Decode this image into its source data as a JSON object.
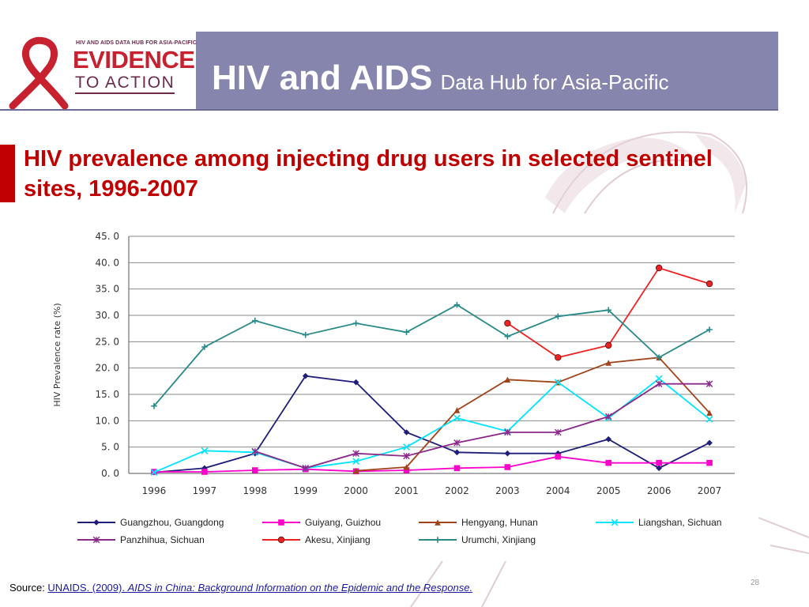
{
  "header": {
    "logo_small_text": "HIV AND AIDS DATA HUB FOR ASIA-PACIFIC",
    "logo_evidence": "EVIDENCE",
    "logo_to_action": "TO ACTION",
    "title_main": "HIV and AIDS",
    "title_sub": "Data Hub for Asia-Pacific"
  },
  "slide_title": "HIV prevalence among injecting drug users in selected sentinel sites, 1996-2007",
  "footer": {
    "source_label": "Source: ",
    "source_link": "UNAIDS. (2009). ",
    "source_title": "AIDS in China: Background Information on the Epidemic and the Response.",
    "page_number": "28"
  },
  "colors": {
    "banner": "#8585ad",
    "title_red": "#c00000"
  },
  "chart_data": {
    "type": "line",
    "title": "",
    "xlabel": "",
    "ylabel": "HIV Prevalence rate (%)",
    "ylim": [
      0,
      45
    ],
    "yticks": [
      "0. 0",
      "5. 0",
      "10. 0",
      "15. 0",
      "20. 0",
      "25. 0",
      "30. 0",
      "35. 0",
      "40. 0",
      "45. 0"
    ],
    "x": [
      "1996",
      "1997",
      "1998",
      "1999",
      "2000",
      "2001",
      "2002",
      "2003",
      "2004",
      "2005",
      "2006",
      "2007"
    ],
    "grid": true,
    "legend_position": "bottom",
    "series": [
      {
        "name": "Guangzhou, Guangdong",
        "color": "#1f1f7a",
        "marker": "diamond",
        "values": [
          0.2,
          1.0,
          3.8,
          18.5,
          17.3,
          7.8,
          4.0,
          3.8,
          3.8,
          6.5,
          1.0,
          5.8
        ]
      },
      {
        "name": "Guiyang,  Guizhou",
        "color": "#ff00cc",
        "marker": "square",
        "values": [
          0.3,
          0.3,
          0.6,
          0.8,
          0.4,
          0.6,
          1.0,
          1.2,
          3.2,
          2.0,
          2.0,
          2.0
        ]
      },
      {
        "name": "Hengyang, Hunan",
        "color": "#a0441a",
        "marker": "triangle",
        "values": [
          null,
          null,
          null,
          null,
          0.5,
          1.2,
          12.0,
          17.8,
          17.3,
          21.0,
          22.0,
          11.5
        ]
      },
      {
        "name": "Liangshan, Sichuan",
        "color": "#00e5ff",
        "marker": "x",
        "values": [
          0.2,
          4.3,
          4.0,
          1.0,
          2.3,
          5.0,
          10.5,
          8.0,
          17.3,
          10.5,
          18.0,
          10.3
        ]
      },
      {
        "name": "Panzhihua, Sichuan",
        "color": "#8a2a8a",
        "marker": "star",
        "values": [
          null,
          null,
          4.2,
          1.0,
          3.8,
          3.3,
          5.8,
          7.8,
          7.8,
          10.8,
          17.0,
          17.0
        ]
      },
      {
        "name": "Akesu, Xinjiang",
        "color": "#ee2222",
        "marker": "circle",
        "values": [
          null,
          null,
          null,
          null,
          null,
          null,
          null,
          28.5,
          22.0,
          24.3,
          39.0,
          36.0
        ]
      },
      {
        "name": "Urumchi, Xinjiang",
        "color": "#2a8a8a",
        "marker": "plus",
        "values": [
          12.8,
          24.0,
          29.0,
          26.3,
          28.5,
          26.8,
          32.0,
          26.0,
          29.8,
          31.0,
          22.0,
          27.3
        ]
      }
    ]
  }
}
